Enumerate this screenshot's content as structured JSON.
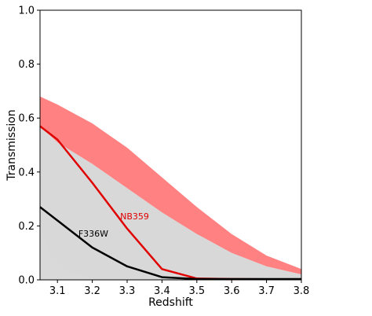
{
  "chart_data": {
    "type": "line",
    "xlabel": "Redshift",
    "ylabel": "Transmission",
    "xlim": [
      3.05,
      3.8
    ],
    "ylim": [
      0.0,
      1.0
    ],
    "xticks": [
      3.1,
      3.2,
      3.3,
      3.4,
      3.5,
      3.6,
      3.7,
      3.8
    ],
    "yticks": [
      0.0,
      0.2,
      0.4,
      0.6,
      0.8,
      1.0
    ],
    "xtick_labels": [
      "3.1",
      "3.2",
      "3.3",
      "3.4",
      "3.5",
      "3.6",
      "3.7",
      "3.8"
    ],
    "ytick_labels": [
      "0.0",
      "0.2",
      "0.4",
      "0.6",
      "0.8",
      "1.0"
    ],
    "grid": false,
    "bands": [
      {
        "color": "#ff6b6b",
        "opacity": 0.85,
        "x": [
          3.05,
          3.1,
          3.2,
          3.3,
          3.4,
          3.5,
          3.6,
          3.7,
          3.8
        ],
        "upper": [
          0.68,
          0.65,
          0.58,
          0.49,
          0.38,
          0.27,
          0.17,
          0.09,
          0.04
        ],
        "lower": [
          0.57,
          0.51,
          0.43,
          0.34,
          0.25,
          0.17,
          0.1,
          0.05,
          0.02
        ]
      },
      {
        "color": "#c8c8c8",
        "opacity": 0.7,
        "x": [
          3.05,
          3.1,
          3.2,
          3.3,
          3.4,
          3.5,
          3.6,
          3.7,
          3.8
        ],
        "upper": [
          0.57,
          0.51,
          0.43,
          0.34,
          0.25,
          0.17,
          0.1,
          0.05,
          0.02
        ],
        "lower": [
          0.0,
          0.0,
          0.0,
          0.0,
          0.0,
          0.0,
          0.0,
          0.0,
          0.0
        ]
      },
      {
        "color": "#d9d9d9",
        "opacity": 0.9,
        "x": [
          3.05,
          3.08,
          3.12,
          3.16,
          3.2
        ],
        "upper": [
          0.2,
          0.09,
          0.04,
          0.02,
          0.005
        ],
        "lower": [
          0.0,
          0.0,
          0.0,
          0.0,
          0.0
        ]
      }
    ],
    "series": [
      {
        "name": "NB359",
        "color": "#e00000",
        "x": [
          3.05,
          3.1,
          3.2,
          3.3,
          3.4,
          3.5,
          3.6,
          3.7,
          3.8
        ],
        "values": [
          0.57,
          0.52,
          0.36,
          0.19,
          0.04,
          0.005,
          0.003,
          0.002,
          0.002
        ]
      },
      {
        "name": "F336W",
        "color": "#000000",
        "x": [
          3.05,
          3.1,
          3.2,
          3.3,
          3.4,
          3.5,
          3.6,
          3.7,
          3.8
        ],
        "values": [
          0.27,
          0.22,
          0.12,
          0.05,
          0.01,
          0.003,
          0.003,
          0.003,
          0.003
        ]
      }
    ],
    "annotations": [
      {
        "text": "NB359",
        "x": 3.28,
        "y": 0.225,
        "color": "#e00000"
      },
      {
        "text": "F336W",
        "x": 3.16,
        "y": 0.16,
        "color": "#000000"
      }
    ]
  }
}
